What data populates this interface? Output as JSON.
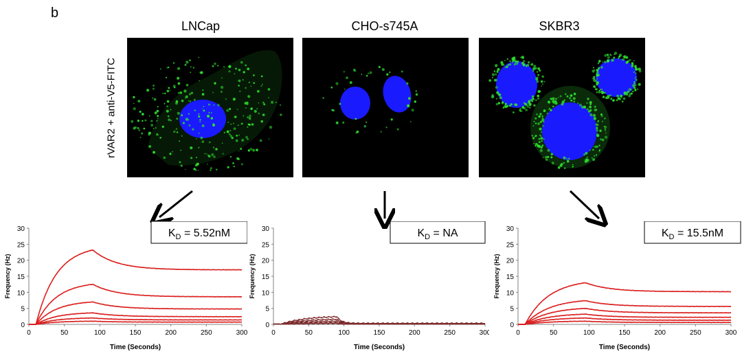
{
  "panel_label": "b",
  "image_ylabel": "rVAR2 + anti-V5-FITC",
  "cells": [
    {
      "title": "LNCap",
      "kd": "K_D = 5.52nM"
    },
    {
      "title": "CHO-s745A",
      "kd": "K_D = NA"
    },
    {
      "title": "SKBR3",
      "kd": "K_D = 15.5nM"
    }
  ],
  "kd_parts": [
    {
      "k": "K",
      "sub": "D",
      "rest": " = 5.52nM"
    },
    {
      "k": "K",
      "sub": "D",
      "rest": " = NA"
    },
    {
      "k": "K",
      "sub": "D",
      "rest": " = 15.5nM"
    }
  ],
  "colors": {
    "fit": "#e0201f",
    "data": "#6b1a1a",
    "nucleus": "#1a1aff",
    "fitc": "#2fe02f"
  },
  "chart_data": [
    {
      "type": "line",
      "title": "",
      "xlabel": "Time (Seconds)",
      "ylabel": "Frequency (Hz)",
      "xlim": [
        0,
        300
      ],
      "ylim": [
        0,
        30
      ],
      "xticks": [
        0,
        50,
        100,
        150,
        200,
        250,
        300
      ],
      "yticks": [
        0,
        5,
        10,
        15,
        20,
        25,
        30
      ],
      "xtick_labels": [
        "0",
        "50",
        "100",
        "150",
        "200",
        "250",
        "300"
      ],
      "ytick_labels": [
        "0",
        "5",
        "10",
        "15",
        "20",
        "25",
        "30"
      ],
      "curve_params": {
        "t0": 10,
        "t1": 90,
        "peaks": [
          23.2,
          12.5,
          7.0,
          3.6,
          2.0,
          1.0
        ],
        "finals": [
          17.0,
          8.6,
          4.8,
          2.4,
          1.4,
          0.7
        ],
        "rise_k": 0.035,
        "decay_k": 0.03
      }
    },
    {
      "type": "line",
      "title": "",
      "xlabel": "Time (Seconds)",
      "ylabel": "Frequency (Hz)",
      "xlim": [
        0,
        300
      ],
      "ylim": [
        0,
        30
      ],
      "xticks": [
        0,
        50,
        100,
        150,
        200,
        250,
        300
      ],
      "yticks": [
        0,
        5,
        10,
        15,
        20,
        25,
        30
      ],
      "xtick_labels": [
        "0",
        "50",
        "100",
        "150",
        "200",
        "250",
        "300"
      ],
      "ytick_labels": [
        "0",
        "5",
        "10",
        "15",
        "20",
        "25",
        "30"
      ],
      "curve_params": {
        "t0": 10,
        "t1": 90,
        "peaks": [
          2.4,
          1.6,
          1.0,
          0.5,
          0.3
        ],
        "finals": [
          0.3,
          0.2,
          0.15,
          0.1,
          0.05
        ],
        "rise_k": 0.03,
        "decay_k": 0.15
      }
    },
    {
      "type": "line",
      "title": "",
      "xlabel": "Time (Seconds)",
      "ylabel": "Frequency (Hz)",
      "xlim": [
        0,
        300
      ],
      "ylim": [
        0,
        30
      ],
      "xticks": [
        0,
        50,
        100,
        150,
        200,
        250,
        300
      ],
      "yticks": [
        0,
        5,
        10,
        15,
        20,
        25,
        30
      ],
      "xtick_labels": [
        "0",
        "50",
        "100",
        "150",
        "200",
        "250",
        "300"
      ],
      "ytick_labels": [
        "0",
        "5",
        "10",
        "15",
        "20",
        "25",
        "30"
      ],
      "curve_params": {
        "t0": 10,
        "t1": 95,
        "peaks": [
          13.0,
          7.4,
          5.0,
          3.2,
          2.0,
          1.0
        ],
        "finals": [
          10.2,
          5.6,
          3.6,
          2.2,
          1.3,
          0.6
        ],
        "rise_k": 0.03,
        "decay_k": 0.03
      }
    }
  ]
}
